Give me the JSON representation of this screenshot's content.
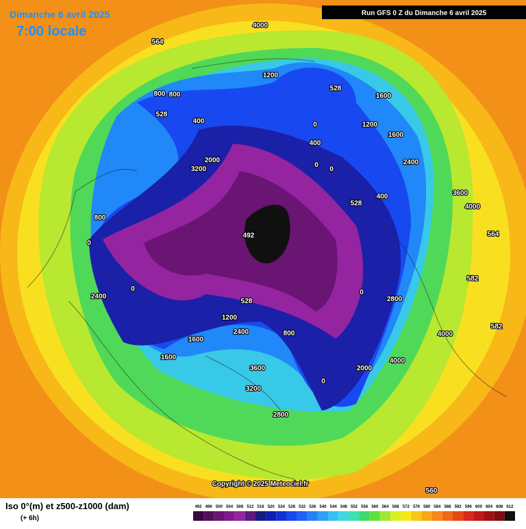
{
  "header": {
    "date": "Dimanche 6 avril 2025",
    "time": "7:00 locale",
    "run": "Run GFS 0 Z du Dimanche 6 avril 2025"
  },
  "footer": {
    "title": "Iso 0°(m) et z500-z1000 (dam)",
    "step": "(+ 6h)",
    "copyright": "Copyright © 2025 Meteociel.fr"
  },
  "legend": {
    "ticks": [
      492,
      496,
      500,
      504,
      508,
      512,
      516,
      520,
      524,
      528,
      532,
      536,
      540,
      544,
      548,
      552,
      556,
      560,
      564,
      568,
      572,
      576,
      580,
      584,
      588,
      592,
      596,
      600,
      604,
      608,
      612
    ],
    "colors": [
      "#3a0840",
      "#52105a",
      "#6a1474",
      "#7e1a8a",
      "#9424a0",
      "#5a1a7a",
      "#1a1a80",
      "#1020b0",
      "#1030d8",
      "#1848f0",
      "#2060f8",
      "#2880f8",
      "#30a0f8",
      "#38c0f0",
      "#40d8e0",
      "#40e0b0",
      "#40d870",
      "#60e040",
      "#a0e830",
      "#d8f020",
      "#f8e818",
      "#f8c818",
      "#f8a818",
      "#f88818",
      "#f06818",
      "#e84818",
      "#d82818",
      "#c01818",
      "#a01010",
      "#800c0c",
      "#101010"
    ]
  },
  "labels": [
    492,
    528,
    528,
    528,
    528,
    0,
    0,
    0,
    0,
    0,
    0,
    0,
    400,
    400,
    400,
    800,
    800,
    800,
    800,
    1200,
    1200,
    1200,
    1600,
    1600,
    1600,
    1600,
    2000,
    2000,
    2400,
    2400,
    2400,
    2800,
    2800,
    3200,
    3200,
    3600,
    3600,
    4000,
    4000,
    4000,
    4000,
    564,
    564,
    582,
    582,
    560
  ]
}
